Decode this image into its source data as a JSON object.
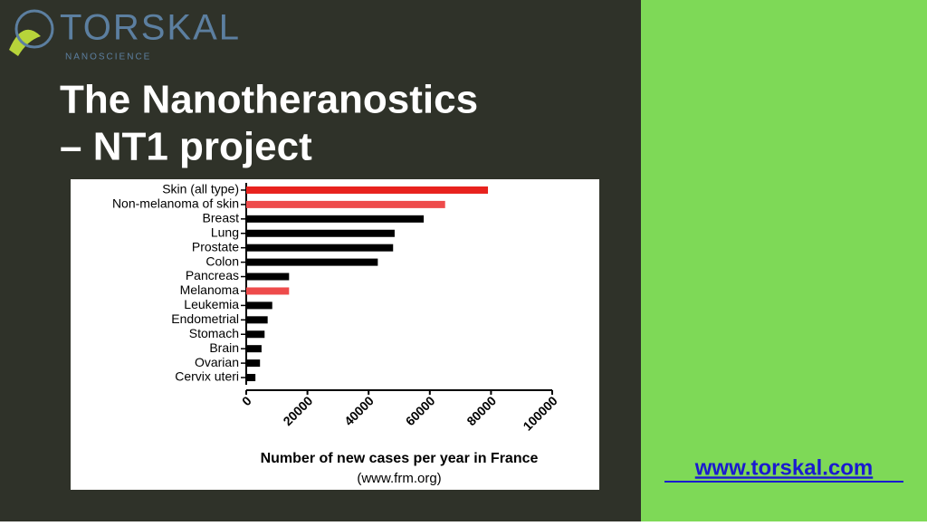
{
  "logo": {
    "name": "TORSKAL",
    "tagline": "NANOSCIENCE"
  },
  "title": [
    "The Nanotheranostics",
    "– NT1 project"
  ],
  "link": "www.torskal.com",
  "chart_data": {
    "type": "bar",
    "orientation": "horizontal",
    "categories": [
      "Skin (all type)",
      "Non-melanoma of skin",
      "Breast",
      "Lung",
      "Prostate",
      "Colon",
      "Pancreas",
      "Melanoma",
      "Leukemia",
      "Endometrial",
      "Stomach",
      "Brain",
      "Ovarian",
      "Cervix uteri"
    ],
    "values": [
      79000,
      65000,
      58000,
      48500,
      48000,
      43000,
      14000,
      14000,
      8500,
      7000,
      6000,
      5000,
      4500,
      3000
    ],
    "colors": [
      "#e8221d",
      "#ee4b4b",
      "#000000",
      "#000000",
      "#000000",
      "#000000",
      "#000000",
      "#ee4b4b",
      "#000000",
      "#000000",
      "#000000",
      "#000000",
      "#000000",
      "#000000"
    ],
    "xlim": [
      0,
      100000
    ],
    "xticks": [
      0,
      20000,
      40000,
      60000,
      80000,
      100000
    ],
    "xlabel": "Number of new cases per year in France",
    "source": "(www.frm.org)"
  }
}
